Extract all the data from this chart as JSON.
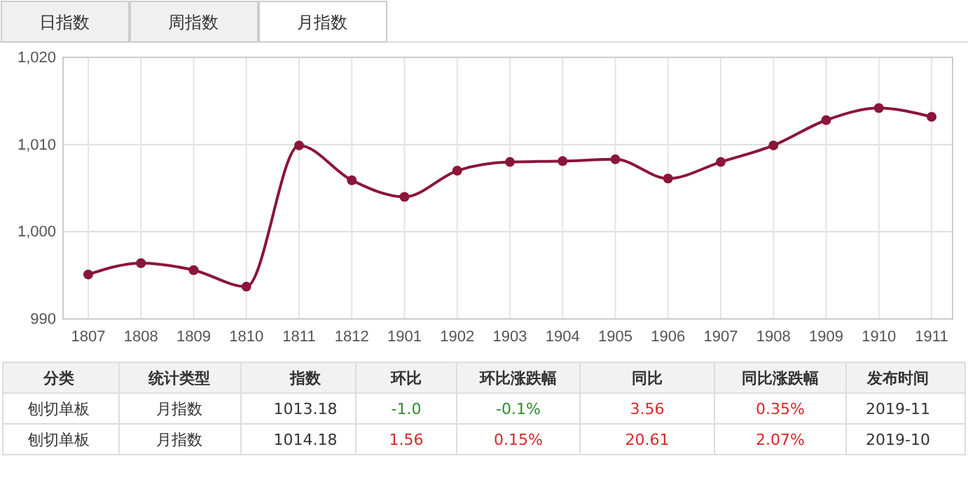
{
  "chart_data": {
    "type": "line",
    "categories": [
      "1807",
      "1808",
      "1809",
      "1810",
      "1811",
      "1812",
      "1901",
      "1902",
      "1903",
      "1904",
      "1905",
      "1906",
      "1907",
      "1908",
      "1909",
      "1910",
      "1911"
    ],
    "series": [
      {
        "color": "#8b1538",
        "values": [
          995.1,
          996.4,
          995.6,
          993.7,
          1009.9,
          1005.9,
          1004.0,
          1007.0,
          1008.0,
          1008.1,
          1008.3,
          1006.1,
          1008.0,
          1009.9,
          1012.8,
          1014.18,
          1013.18
        ]
      }
    ],
    "ylim": [
      990,
      1020
    ],
    "yticks": [
      {
        "value": 990,
        "label": "990"
      },
      {
        "value": 1000,
        "label": "1,000"
      },
      {
        "value": 1010,
        "label": "1,010"
      },
      {
        "value": 1020,
        "label": "1,020"
      }
    ],
    "grid": true,
    "marker": "circle",
    "annotations": [
      "日指数",
      "周指数",
      "月指数",
      "分类",
      "统计类型",
      "指数",
      "环比",
      "环比涨跌幅",
      "同比",
      "同比涨跌幅",
      "发布时间",
      "刨切单板",
      "月指数",
      "1013.18",
      "-1.0",
      "-0.1%",
      "3.56",
      "0.35%",
      "2019-11",
      "刨切单板",
      "月指数",
      "1014.18",
      "1.56",
      "0.15%",
      "20.61",
      "2.07%",
      "2019-10"
    ]
  }
}
